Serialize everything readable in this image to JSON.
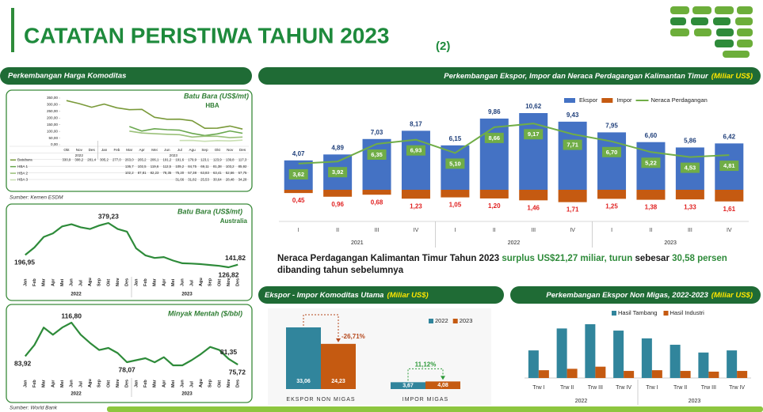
{
  "header": {
    "title": "CATATAN PERISTIWA TAHUN 2023",
    "subtitle": "(2)",
    "section": "Perkembangan Harga Komoditas"
  },
  "summary": {
    "parts": [
      {
        "text": "Neraca Perdagangan Kalimantan Timur Tahun 2023 ",
        "color": "#1a1a1a"
      },
      {
        "text": "surplus US$21,27 miliar, turun",
        "color": "#2e8b3a"
      },
      {
        "text": " sebesar ",
        "color": "#1a1a1a"
      },
      {
        "text": "30,58 persen",
        "color": "#2e8b3a"
      },
      {
        "text": " dibanding tahun sebelumnya",
        "color": "#1a1a1a"
      }
    ]
  },
  "chart_data": [
    {
      "type": "line",
      "title": "Batu Bara (US$/mt)",
      "subtitle": "HBA",
      "source": "Sumber: Kemen ESDM",
      "groups": [
        {
          "name": "2022",
          "categories": [
            "Okt",
            "Nov",
            "Des"
          ]
        },
        {
          "name": "2023",
          "categories": [
            "Jan",
            "Feb",
            "Mar",
            "Apr",
            "Mei",
            "Jun",
            "Jul",
            "Agu",
            "Sep",
            "Okt",
            "Nov",
            "Des"
          ]
        }
      ],
      "ylim": [
        0,
        350
      ],
      "yticks": [
        {
          "value": 0,
          "label": "0,00"
        },
        {
          "value": 50,
          "label": "50,00"
        },
        {
          "value": 100,
          "label": "100,00"
        },
        {
          "value": 150,
          "label": "150,00"
        },
        {
          "value": 200,
          "label": "200,00"
        },
        {
          "value": 250,
          "label": "250,00"
        },
        {
          "value": 300,
          "label": "300,00"
        },
        {
          "value": 350,
          "label": "350,00"
        }
      ],
      "series": [
        {
          "name": "Batubara",
          "color": "#7a9a3a",
          "values": [
            330.9,
            308.2,
            281.4,
            305.2,
            277.0,
            263.0,
            265.2,
            206.1,
            191.2,
            191.6,
            179.9,
            123.1,
            123.9,
            139.8,
            117.3
          ],
          "value_labels": [
            "330,9",
            "308,2",
            "281,4",
            "305,2",
            "277,0",
            "263,0",
            "265,2",
            "206,1",
            "191,2",
            "191,6",
            "179,9",
            "123,1",
            "123,9",
            "139,8",
            "117,3"
          ]
        },
        {
          "name": "HBA 1",
          "color": "#6aa84f",
          "values": [
            null,
            null,
            null,
            null,
            null,
            136.7,
            102.5,
            119.6,
            112.5,
            109.2,
            84.75,
            69.11,
            81.38,
            103.2,
            85.92
          ],
          "value_labels": [
            null,
            null,
            null,
            null,
            null,
            "136,7",
            "102,5",
            "119,6",
            "112,5",
            "109,2",
            "84,75",
            "69,11",
            "81,38",
            "103,2",
            "85,92"
          ]
        },
        {
          "name": "HBA 2",
          "color": "#9bc17a",
          "values": [
            null,
            null,
            null,
            null,
            null,
            102.2,
            87.81,
            82.23,
            78.35,
            75.2,
            57.38,
            63.83,
            63.41,
            52.66,
            57.75
          ],
          "value_labels": [
            null,
            null,
            null,
            null,
            null,
            "102,2",
            "87,81",
            "82,23",
            "78,35",
            "75,20",
            "57,38",
            "63,83",
            "63,41",
            "52,66",
            "57,75"
          ]
        },
        {
          "name": "HBA 3",
          "color": "#c9dfb3",
          "values": [
            null,
            null,
            null,
            null,
            null,
            null,
            null,
            null,
            null,
            31.66,
            31.82,
            25.53,
            30.64,
            28.48,
            34.28
          ],
          "value_labels": [
            null,
            null,
            null,
            null,
            null,
            null,
            null,
            null,
            null,
            "31,66",
            "31,82",
            "25,53",
            "30,64",
            "28,48",
            "34,28"
          ]
        }
      ]
    },
    {
      "type": "line",
      "title": "Batu Bara (US$/mt)",
      "subtitle": "Australia",
      "color": "#2e8b3a",
      "groups": [
        {
          "name": "2022",
          "categories": [
            "Jan",
            "Feb",
            "Mar",
            "Apr",
            "Mei",
            "Jun",
            "Jul",
            "Agu",
            "Sep",
            "Okt",
            "Nov",
            "Des"
          ]
        },
        {
          "name": "2023",
          "categories": [
            "Jan",
            "Feb",
            "Mar",
            "Apr",
            "Mei",
            "Jun",
            "Jul",
            "Agu",
            "Sep",
            "Okt",
            "Nov",
            "Des"
          ]
        }
      ],
      "values": [
        196.95,
        240,
        300,
        320,
        360,
        372,
        355,
        345,
        365,
        379.23,
        345,
        330,
        235,
        195,
        180,
        185,
        165,
        150,
        148,
        145,
        140,
        135,
        126.82,
        141.82
      ],
      "value_labels": [
        "196,95",
        null,
        null,
        null,
        null,
        null,
        null,
        null,
        null,
        "379,23",
        null,
        null,
        null,
        null,
        null,
        null,
        null,
        null,
        null,
        null,
        null,
        null,
        "126,82",
        "141,82"
      ]
    },
    {
      "type": "line",
      "title": "Minyak Mentah ($/bbl)",
      "source": "Sumber: World Bank",
      "color": "#2e8b3a",
      "groups": [
        {
          "name": "2022",
          "categories": [
            "Jan",
            "Feb",
            "Mar",
            "Apr",
            "Mei",
            "Jun",
            "Jul",
            "Agu",
            "Sep",
            "Okt",
            "Nov",
            "Des"
          ]
        },
        {
          "name": "2023",
          "categories": [
            "Jan",
            "Feb",
            "Mar",
            "Apr",
            "Mei",
            "Jun",
            "Jul",
            "Agu",
            "Sep",
            "Okt",
            "Nov",
            "Des"
          ]
        }
      ],
      "values": [
        83.92,
        95,
        112,
        105,
        112,
        116.8,
        105,
        97,
        90,
        92,
        87,
        78.07,
        80,
        82,
        78,
        83,
        75,
        75,
        80,
        86,
        93,
        90,
        81.35,
        75.72
      ],
      "value_labels": [
        "83,92",
        null,
        null,
        null,
        null,
        "116,80",
        null,
        null,
        null,
        null,
        null,
        "78,07",
        null,
        null,
        null,
        null,
        null,
        null,
        null,
        null,
        null,
        null,
        "81,35",
        "75,72"
      ]
    },
    {
      "type": "bar",
      "title": "Perkembangan Ekspor, Impor dan Neraca Perdagangan Kalimantan Timur",
      "unit": "(Miliar US$)",
      "groups": [
        {
          "name": "2021",
          "categories": [
            "I",
            "II",
            "III",
            "IV"
          ]
        },
        {
          "name": "2022",
          "categories": [
            "I",
            "II",
            "III",
            "IV"
          ]
        },
        {
          "name": "2023",
          "categories": [
            "I",
            "II",
            "III",
            "IV"
          ]
        }
      ],
      "series": [
        {
          "name": "Ekspor",
          "color": "#4472c4",
          "values": [
            4.07,
            4.89,
            7.03,
            8.17,
            6.15,
            9.86,
            10.62,
            9.43,
            7.95,
            6.6,
            5.86,
            6.42
          ],
          "value_labels": [
            "4,07",
            "4,89",
            "7,03",
            "8,17",
            "6,15",
            "9,86",
            "10,62",
            "9,43",
            "7,95",
            "6,60",
            "5,86",
            "6,42"
          ]
        },
        {
          "name": "Impor",
          "color": "#c55a11",
          "label_color": "#e02020",
          "drawn_below_axis": true,
          "values": [
            0.45,
            0.96,
            0.68,
            1.23,
            1.05,
            1.2,
            1.46,
            1.71,
            1.25,
            1.38,
            1.33,
            1.61
          ],
          "value_labels": [
            "0,45",
            "0,96",
            "0,68",
            "1,23",
            "1,05",
            "1,20",
            "1,46",
            "1,71",
            "1,25",
            "1,38",
            "1,33",
            "1,61"
          ]
        },
        {
          "name": "Neraca Perdagangan",
          "type": "line",
          "color": "#70ad47",
          "values": [
            3.62,
            3.92,
            6.35,
            6.93,
            5.1,
            8.66,
            9.17,
            7.71,
            6.7,
            5.22,
            4.53,
            4.81
          ],
          "value_labels": [
            "3,62",
            "3,92",
            "6,35",
            "6,93",
            "5,10",
            "8,66",
            "9,17",
            "7,71",
            "6,70",
            "5,22",
            "4,53",
            "4,81"
          ]
        }
      ]
    },
    {
      "type": "bar",
      "title": "Ekspor - Impor Komoditas Utama",
      "unit": "(Miliar US$)",
      "categories": [
        "EKSPOR NON MIGAS",
        "IMPOR MIGAS"
      ],
      "change_labels": [
        "-26,71%",
        "11,12%"
      ],
      "change_colors": [
        "#b5471b",
        "#2e9a3a"
      ],
      "series": [
        {
          "name": "2022",
          "color": "#31859c",
          "values": [
            33.06,
            3.67
          ],
          "value_labels": [
            "33,06",
            "3,67"
          ]
        },
        {
          "name": "2023",
          "color": "#c55a11",
          "values": [
            24.23,
            4.08
          ],
          "value_labels": [
            "24,23",
            "4,08"
          ]
        }
      ]
    },
    {
      "type": "bar",
      "title": "Perkembangan Ekspor Non Migas, 2022-2023",
      "unit": "(Miliar US$)",
      "groups": [
        {
          "name": "2022",
          "categories": [
            "Trw I",
            "Trw II",
            "Trw III",
            "Trw IV"
          ]
        },
        {
          "name": "2023",
          "categories": [
            "Trw I",
            "Trw II",
            "Trw III",
            "Trw IV"
          ]
        }
      ],
      "series": [
        {
          "name": "Hasil Tambang",
          "color": "#31859c",
          "values": [
            3.9,
            7.0,
            7.6,
            6.7,
            5.6,
            4.7,
            3.6,
            3.9
          ]
        },
        {
          "name": "Hasil Industri",
          "color": "#c55a11",
          "values": [
            1.1,
            1.3,
            1.6,
            1.0,
            1.1,
            1.0,
            0.9,
            1.0
          ]
        }
      ]
    }
  ]
}
